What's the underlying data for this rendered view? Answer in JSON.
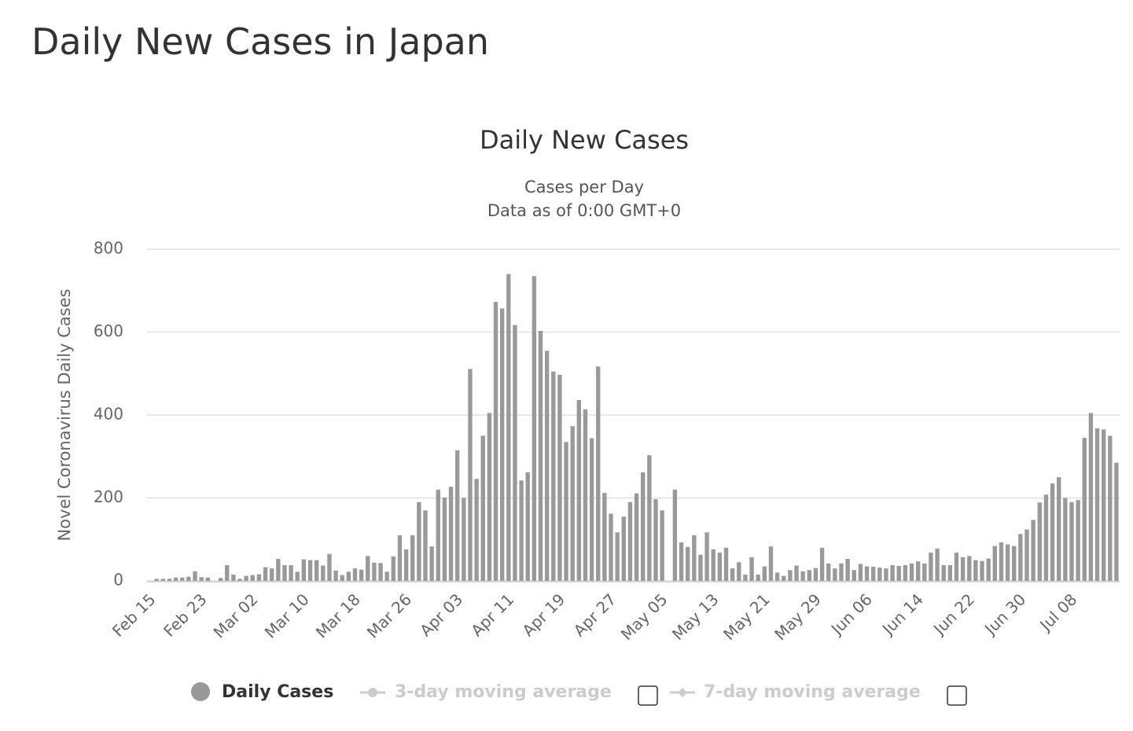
{
  "header": {
    "title": "Daily New Cases in Japan"
  },
  "chart_data": {
    "type": "bar",
    "title": "Daily New Cases",
    "subtitle": [
      "Cases per Day",
      "Data as of 0:00 GMT+0"
    ],
    "y_label": "Novel Coronavirus Daily Cases",
    "categories": [
      "Feb 15",
      null,
      null,
      null,
      null,
      null,
      null,
      null,
      "Feb 23",
      null,
      null,
      null,
      null,
      null,
      null,
      null,
      "Mar 02",
      null,
      null,
      null,
      null,
      null,
      null,
      null,
      "Mar 10",
      null,
      null,
      null,
      null,
      null,
      null,
      null,
      "Mar 18",
      null,
      null,
      null,
      null,
      null,
      null,
      null,
      "Mar 26",
      null,
      null,
      null,
      null,
      null,
      null,
      null,
      "Apr 03",
      null,
      null,
      null,
      null,
      null,
      null,
      null,
      "Apr 11",
      null,
      null,
      null,
      null,
      null,
      null,
      null,
      "Apr 19",
      null,
      null,
      null,
      null,
      null,
      null,
      null,
      "Apr 27",
      null,
      null,
      null,
      null,
      null,
      null,
      null,
      "May 05",
      null,
      null,
      null,
      null,
      null,
      null,
      null,
      "May 13",
      null,
      null,
      null,
      null,
      null,
      null,
      null,
      "May 21",
      null,
      null,
      null,
      null,
      null,
      null,
      null,
      "May 29",
      null,
      null,
      null,
      null,
      null,
      null,
      null,
      "Jun 06",
      null,
      null,
      null,
      null,
      null,
      null,
      null,
      "Jun 14",
      null,
      null,
      null,
      null,
      null,
      null,
      null,
      "Jun 22",
      null,
      null,
      null,
      null,
      null,
      null,
      null,
      "Jun 30",
      null,
      null,
      null,
      null,
      null,
      null,
      null,
      "Jul 08",
      null,
      null,
      null,
      null,
      null,
      null,
      null
    ],
    "series": [
      {
        "name": "Daily Cases",
        "color": "#999999",
        "values": [
          0,
          5,
          5,
          5,
          8,
          8,
          10,
          23,
          9,
          8,
          0,
          7,
          38,
          15,
          5,
          12,
          14,
          16,
          33,
          30,
          53,
          38,
          38,
          22,
          52,
          50,
          50,
          37,
          65,
          25,
          14,
          22,
          30,
          27,
          60,
          44,
          43,
          22,
          59,
          110,
          76,
          110,
          190,
          170,
          83,
          220,
          201,
          227,
          315,
          200,
          511,
          246,
          350,
          405,
          673,
          657,
          740,
          617,
          242,
          262,
          735,
          603,
          555,
          505,
          497,
          335,
          373,
          436,
          414,
          344,
          517,
          212,
          162,
          117,
          155,
          190,
          211,
          262,
          303,
          197,
          170,
          0,
          220,
          93,
          82,
          110,
          63,
          117,
          76,
          68,
          80,
          30,
          45,
          15,
          57,
          15,
          35,
          83,
          20,
          12,
          26,
          37,
          23,
          26,
          31,
          80,
          42,
          30,
          42,
          53,
          26,
          41,
          35,
          34,
          32,
          30,
          38,
          36,
          38,
          42,
          47,
          42,
          68,
          78,
          38,
          38,
          68,
          57,
          60,
          50,
          48,
          54,
          84,
          93,
          88,
          84,
          113,
          124,
          147,
          189,
          208,
          235,
          250,
          200,
          190,
          195,
          345,
          405,
          368,
          365,
          350,
          285
        ]
      }
    ],
    "legend_options": [
      "3-day moving average",
      "7-day moving average"
    ],
    "ylim": [
      0,
      800
    ],
    "yticks": [
      0,
      200,
      400,
      600,
      800
    ],
    "grid": true
  }
}
